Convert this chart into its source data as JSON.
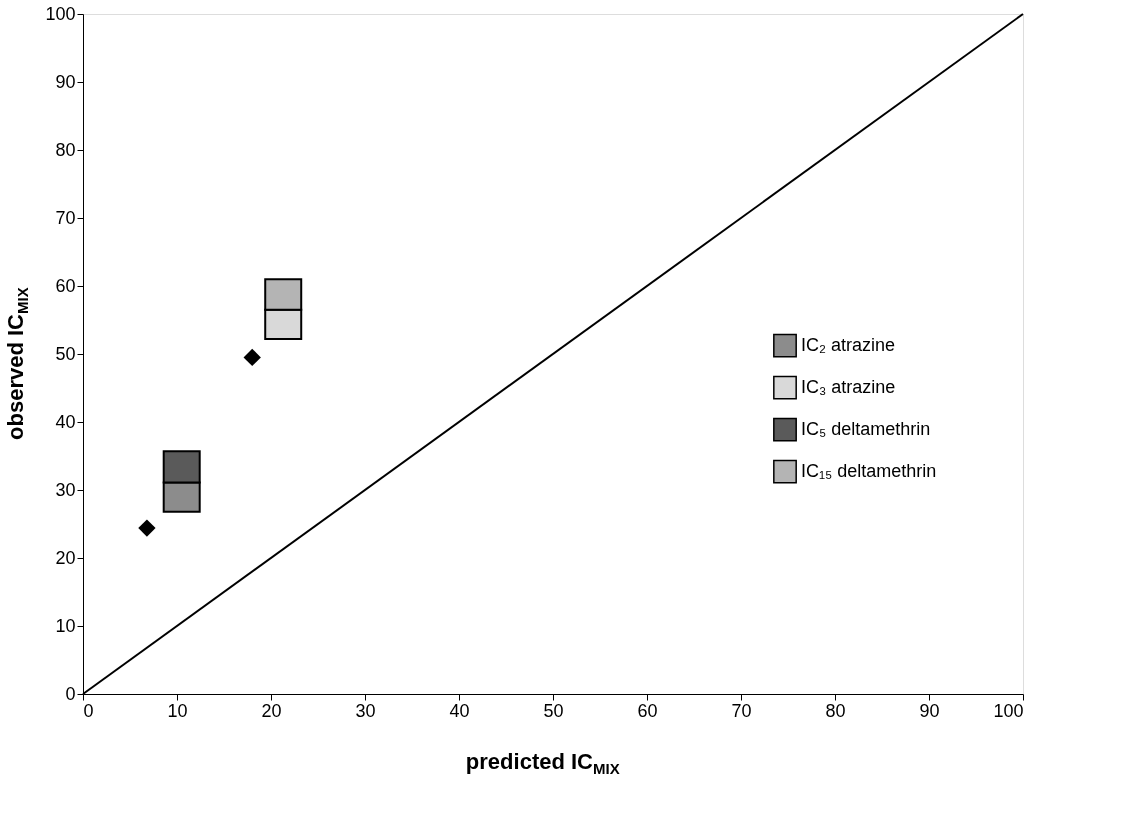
{
  "chart_data": {
    "type": "scatter",
    "xlabel": "predicted IC$_{MIX}$",
    "ylabel": "observed IC$_{MIX}$",
    "xlim": [
      0,
      100
    ],
    "ylim": [
      0,
      100
    ],
    "xticks": [
      0,
      10,
      20,
      30,
      40,
      50,
      60,
      70,
      80,
      90,
      100
    ],
    "yticks": [
      0,
      10,
      20,
      30,
      40,
      50,
      60,
      70,
      80,
      90,
      100
    ],
    "grid": false,
    "legend": "right",
    "series": [
      {
        "type": "line",
        "color": "#000000",
        "x": [
          0,
          100
        ],
        "values": [
          0,
          100
        ],
        "line_style": "solid"
      },
      {
        "color": "#000000",
        "x": [
          6.8,
          18
        ],
        "values": [
          24.4,
          49.5
        ],
        "marker": "diamond"
      },
      {
        "type": "bar",
        "name": "IC₂ atrazine",
        "color": "#8c8c8c",
        "x": [
          10.5
        ],
        "base": [
          26.8
        ],
        "values": [
          4.3
        ]
      },
      {
        "type": "bar",
        "name": "IC₃ atrazine",
        "color": "#d9d9d9",
        "x": [
          21.3
        ],
        "base": [
          52.2
        ],
        "values": [
          4.3
        ]
      },
      {
        "type": "bar",
        "name": "IC₅ deltamethrin",
        "color": "#5a5a5a",
        "x": [
          10.5
        ],
        "base": [
          31.1
        ],
        "values": [
          4.6
        ]
      },
      {
        "type": "bar",
        "name": "IC₁₅ deltamethrin",
        "color": "#b4b4b4",
        "x": [
          21.3
        ],
        "base": [
          56.5
        ],
        "values": [
          4.5
        ]
      }
    ]
  }
}
